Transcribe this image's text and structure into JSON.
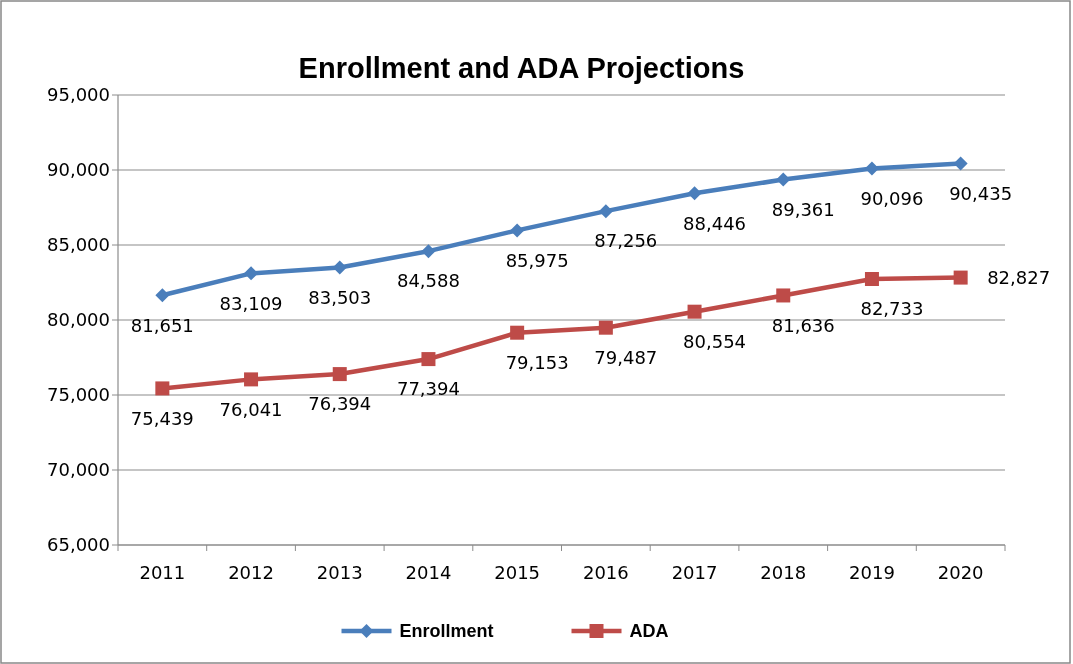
{
  "chart_data": {
    "type": "line",
    "title": "Enrollment and ADA Projections",
    "categories": [
      "2011",
      "2012",
      "2013",
      "2014",
      "2015",
      "2016",
      "2017",
      "2018",
      "2019",
      "2020"
    ],
    "series": [
      {
        "name": "Enrollment",
        "color": "#4a7ebb",
        "marker": "diamond",
        "values": [
          81651,
          83109,
          83503,
          84588,
          85975,
          87256,
          88446,
          89361,
          90096,
          90435
        ],
        "value_labels": [
          "81,651",
          "83,109",
          "83,503",
          "84,588",
          "85,975",
          "87,256",
          "88,446",
          "89,361",
          "90,096",
          "90,435"
        ]
      },
      {
        "name": "ADA",
        "color": "#be4b48",
        "marker": "square",
        "values": [
          75439,
          76041,
          76394,
          77394,
          79153,
          79487,
          80554,
          81636,
          82733,
          82827
        ],
        "value_labels": [
          "75,439",
          "76,041",
          "76,394",
          "77,394",
          "79,153",
          "79,487",
          "80,554",
          "81,636",
          "82,733",
          "82,827"
        ]
      }
    ],
    "ylim": [
      65000,
      95000
    ],
    "yticks": [
      {
        "value": 65000,
        "label": "65,000"
      },
      {
        "value": 70000,
        "label": "70,000"
      },
      {
        "value": 75000,
        "label": "75,000"
      },
      {
        "value": 80000,
        "label": "80,000"
      },
      {
        "value": 85000,
        "label": "85,000"
      },
      {
        "value": 90000,
        "label": "90,000"
      },
      {
        "value": 95000,
        "label": "95,000"
      }
    ],
    "grid": "y",
    "legend": "bottom"
  }
}
